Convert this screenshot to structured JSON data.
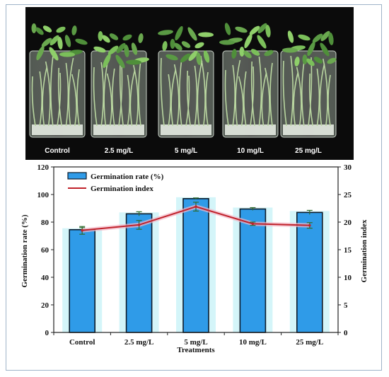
{
  "photo": {
    "labels": [
      "Control",
      "2.5 mg/L",
      "5 mg/L",
      "10 mg/L",
      "25 mg/L"
    ]
  },
  "chart_data": {
    "type": "bar",
    "categories": [
      "Control",
      "2.5 mg/L",
      "5 mg/L",
      "10 mg/L",
      "25 mg/L"
    ],
    "xlabel": "Treatments",
    "ylabel": "Germination rate (%)",
    "y2label": "Germination index",
    "ylim": [
      0,
      120
    ],
    "y2lim": [
      0,
      30
    ],
    "yticks": [
      0,
      20,
      40,
      60,
      80,
      100,
      120
    ],
    "y2ticks": [
      0,
      5,
      10,
      15,
      20,
      25,
      30
    ],
    "legend_position": "top-left",
    "series": [
      {
        "name": "Germination rate (%)",
        "kind": "bar",
        "axis": "left",
        "color": "#2f9be8",
        "values": [
          74.5,
          86,
          97,
          89.5,
          87
        ],
        "errors": [
          1.5,
          1.5,
          0.5,
          1,
          1.5
        ]
      },
      {
        "name": "Germination index",
        "kind": "line",
        "axis": "right",
        "color": "#c0222b",
        "values": [
          18.5,
          19.5,
          22.8,
          19.7,
          19.4
        ],
        "errors": [
          0.7,
          0.8,
          0.8,
          0.3,
          0.5
        ]
      }
    ]
  }
}
